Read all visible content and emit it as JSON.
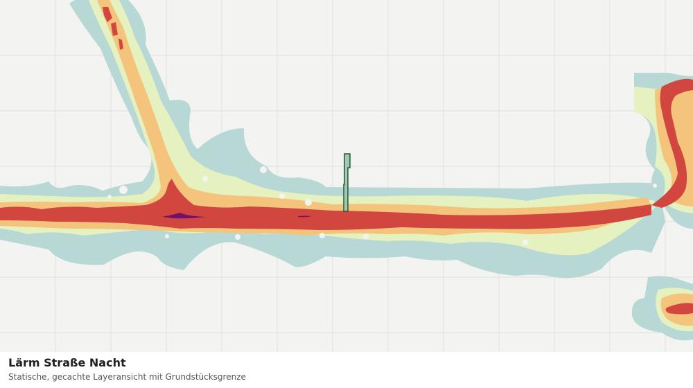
{
  "map": {
    "title": "Lärm Straße Nacht",
    "subtitle": "Statische, gecachte Layeransicht mit Grundstücksgrenze",
    "grid": true,
    "colors": {
      "background": "#f3f4f2",
      "grid": "#dfe1de",
      "band_lowest": "#b8d8d5",
      "band_low": "#e6f1c0",
      "band_mid": "#f4c47c",
      "band_high": "#d1473f",
      "band_highest": "#72116b",
      "parcel_fill": "#a7c7b3",
      "parcel_stroke": "#1f5a32"
    }
  }
}
